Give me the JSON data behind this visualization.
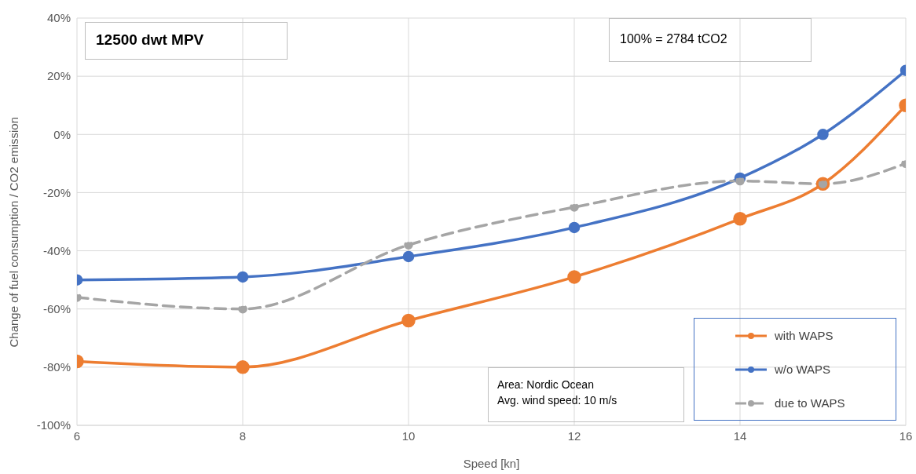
{
  "chart_data": {
    "type": "line",
    "title": "12500 dwt MPV",
    "xlabel": "Speed [kn]",
    "ylabel": "Change of fuel consumption / CO2 emission",
    "annotations": [
      "100% = 2784 tCO2",
      "Area: Nordic Ocean\nAvg. wind speed: 10 m/s"
    ],
    "x": [
      6,
      8,
      10,
      12,
      14,
      15,
      16
    ],
    "series": [
      {
        "name": "with WAPS",
        "color": "#ed7d31",
        "values": [
          -78,
          -80,
          -64,
          -49,
          -29,
          -17,
          10
        ]
      },
      {
        "name": "w/o WAPS",
        "color": "#4472c4",
        "values": [
          -50,
          -49,
          -42,
          -32,
          -15,
          0,
          22
        ]
      },
      {
        "name": "due to WAPS",
        "color": "#a5a5a5",
        "values": [
          -56,
          -60,
          -38,
          -25,
          -16,
          -17,
          -10
        ],
        "line_style": "dashed"
      }
    ],
    "xlim": [
      6,
      16
    ],
    "xticks": [
      6,
      8,
      10,
      12,
      14,
      16
    ],
    "ylim": [
      -100,
      40
    ],
    "yticks": [
      {
        "value": -100,
        "label": "-100%"
      },
      {
        "value": -80,
        "label": "-80%"
      },
      {
        "value": -60,
        "label": "-60%"
      },
      {
        "value": -40,
        "label": "-40%"
      },
      {
        "value": -20,
        "label": "-20%"
      },
      {
        "value": 0,
        "label": "0%"
      },
      {
        "value": 20,
        "label": "20%"
      },
      {
        "value": 40,
        "label": "40%"
      }
    ],
    "grid": true,
    "legend": "bottom right",
    "marker": "circle"
  }
}
